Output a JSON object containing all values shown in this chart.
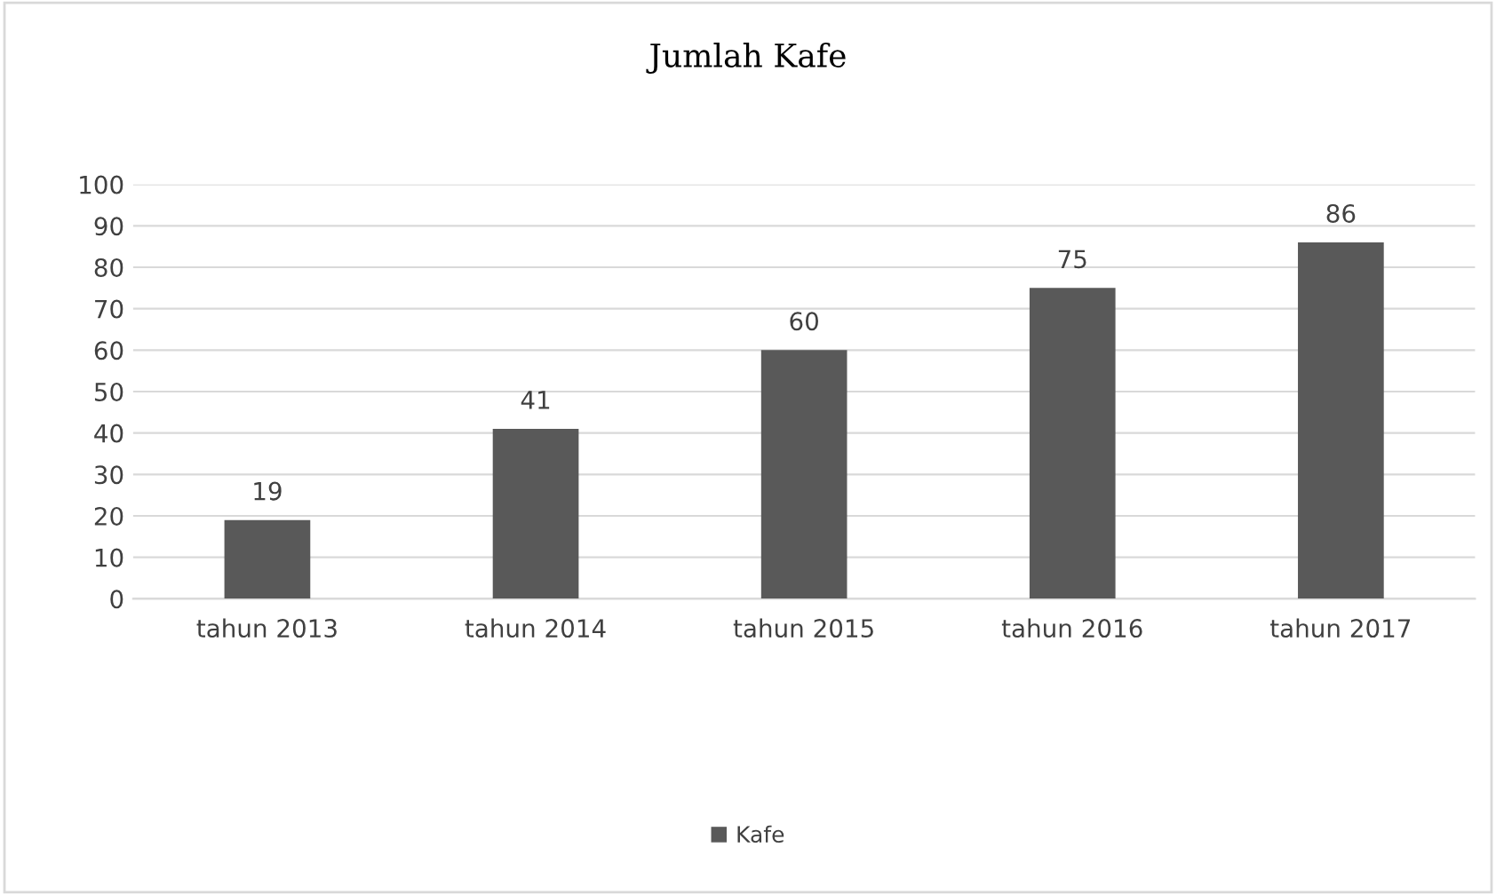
{
  "chart_data": {
    "type": "bar",
    "title": "Jumlah Kafe",
    "categories": [
      "tahun 2013",
      "tahun 2014",
      "tahun 2015",
      "tahun 2016",
      "tahun 2017"
    ],
    "series": [
      {
        "name": "Kafe",
        "color": "#595959",
        "values": [
          19,
          41,
          60,
          75,
          86
        ]
      }
    ],
    "ylim": [
      0,
      100
    ],
    "yticks": [
      0,
      10,
      20,
      30,
      40,
      50,
      60,
      70,
      80,
      90,
      100
    ],
    "grid": "y",
    "legend": "bottom",
    "data_labels": true
  }
}
